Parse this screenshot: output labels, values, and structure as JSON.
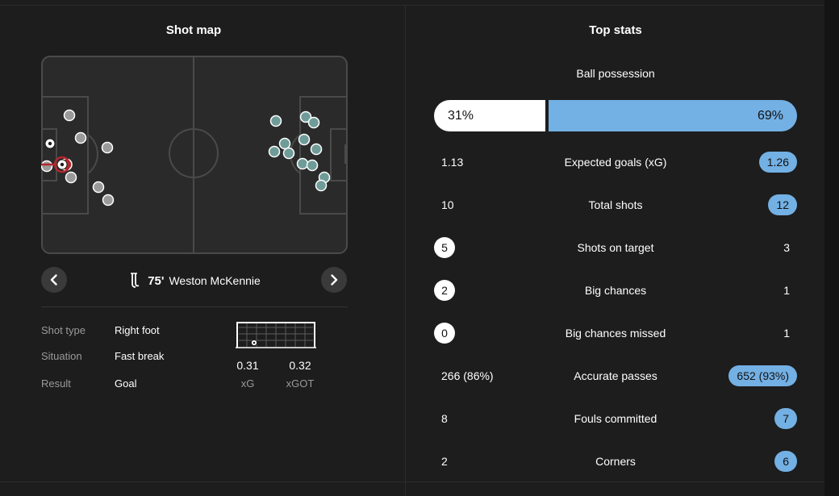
{
  "shot_map": {
    "title": "Shot map",
    "player": {
      "minute": "75'",
      "name": "Weston McKennie"
    },
    "details": [
      {
        "label": "Shot type",
        "value": "Right foot"
      },
      {
        "label": "Situation",
        "value": "Fast break"
      },
      {
        "label": "Result",
        "value": "Goal"
      }
    ],
    "xg": {
      "value": "0.31",
      "label": "xG"
    },
    "xgot": {
      "value": "0.32",
      "label": "xGOT"
    },
    "colors": {
      "home_shot": "#9a9a9a",
      "away_shot": "#6f9c98",
      "selected": "#b3262d",
      "pitch": "#2a2a2a",
      "lines": "#4a4a4a"
    }
  },
  "top_stats": {
    "title": "Top stats",
    "possession": {
      "label": "Ball possession",
      "home": "31%",
      "away": "69%",
      "home_value": 31,
      "away_value": 69
    },
    "rows": [
      {
        "label": "Expected goals (xG)",
        "home": "1.13",
        "away": "1.26",
        "highlight": "away"
      },
      {
        "label": "Total shots",
        "home": "10",
        "away": "12",
        "highlight": "away"
      },
      {
        "label": "Shots on target",
        "home": "5",
        "away": "3",
        "highlight": "home"
      },
      {
        "label": "Big chances",
        "home": "2",
        "away": "1",
        "highlight": "home"
      },
      {
        "label": "Big chances missed",
        "home": "0",
        "away": "1",
        "highlight": "home"
      },
      {
        "label": "Accurate passes",
        "home": "266 (86%)",
        "away": "652 (93%)",
        "highlight": "away"
      },
      {
        "label": "Fouls committed",
        "home": "8",
        "away": "7",
        "highlight": "away"
      },
      {
        "label": "Corners",
        "home": "2",
        "away": "6",
        "highlight": "away"
      }
    ],
    "colors": {
      "home_accent": "#ffffff",
      "away_accent": "#73b0e4"
    }
  }
}
